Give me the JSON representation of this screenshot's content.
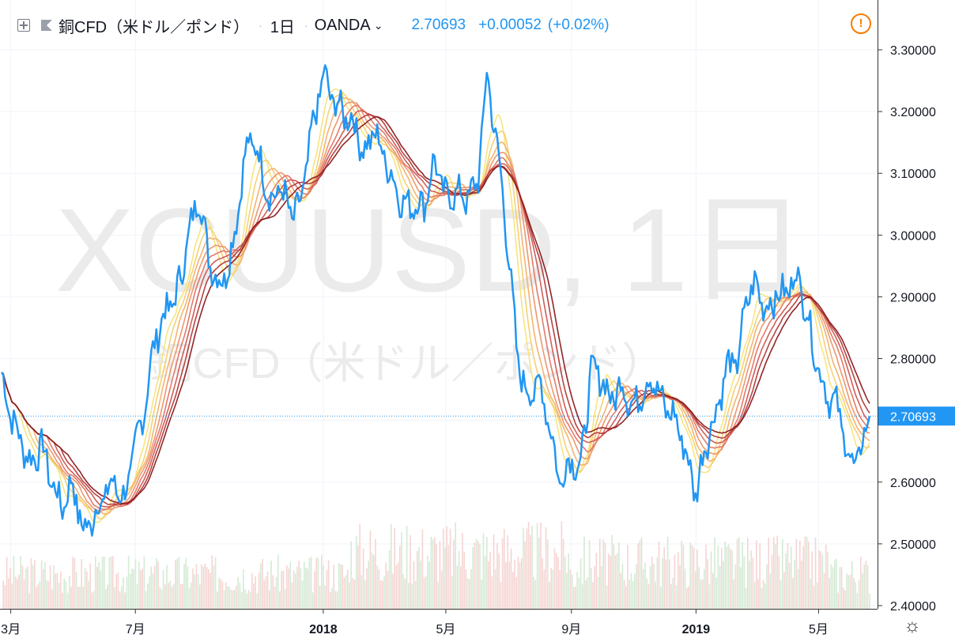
{
  "header": {
    "symbol": "銅CFD（米ドル／ポンド）",
    "separator": "·",
    "interval": "1日",
    "broker": "OANDA",
    "broker_chevron": "⌄",
    "price": "2.70693",
    "change": "+0.00052",
    "change_pct": "(+0.02%)"
  },
  "watermark": {
    "line1": "XCUUSD, 1日",
    "line2": "銅CFD（米ドル／ポンド）"
  },
  "warning_icon": "!",
  "settings_icon": "☼",
  "price_tag": "2.70693",
  "colors": {
    "price_line": "#2196f3",
    "ribbon_fast": "#f5e47a",
    "ribbon_slow": "#8b1a1a",
    "volume_up": "#d5ead5",
    "volume_down": "#f5d5d3",
    "accent": "#2196f3"
  },
  "chart_data": {
    "type": "line",
    "title": "銅CFD（米ドル／ポンド）",
    "x_labels": [
      "3月",
      "7月",
      "2018",
      "5月",
      "9月",
      "2019",
      "5月"
    ],
    "y_ticks": [
      "3.30000",
      "3.20000",
      "3.10000",
      "3.00000",
      "2.90000",
      "2.80000",
      "2.70000",
      "2.60000",
      "2.50000",
      "2.40000"
    ],
    "ylim": [
      2.4,
      3.3
    ],
    "last_price": 2.70693,
    "series": [
      {
        "name": "price",
        "color": "#2196f3",
        "points": [
          [
            "2017-02-20",
            2.77
          ],
          [
            "2017-03-01",
            2.71
          ],
          [
            "2017-03-10",
            2.67
          ],
          [
            "2017-03-20",
            2.63
          ],
          [
            "2017-04-01",
            2.66
          ],
          [
            "2017-04-10",
            2.6
          ],
          [
            "2017-04-20",
            2.56
          ],
          [
            "2017-05-01",
            2.6
          ],
          [
            "2017-05-10",
            2.52
          ],
          [
            "2017-05-20",
            2.54
          ],
          [
            "2017-06-01",
            2.58
          ],
          [
            "2017-06-10",
            2.6
          ],
          [
            "2017-06-20",
            2.57
          ],
          [
            "2017-07-01",
            2.66
          ],
          [
            "2017-07-10",
            2.72
          ],
          [
            "2017-07-20",
            2.83
          ],
          [
            "2017-08-01",
            2.88
          ],
          [
            "2017-08-10",
            2.9
          ],
          [
            "2017-08-20",
            2.98
          ],
          [
            "2017-09-01",
            3.07
          ],
          [
            "2017-09-10",
            2.97
          ],
          [
            "2017-09-20",
            2.92
          ],
          [
            "2017-10-01",
            2.95
          ],
          [
            "2017-10-10",
            3.05
          ],
          [
            "2017-10-20",
            3.16
          ],
          [
            "2017-11-01",
            3.12
          ],
          [
            "2017-11-10",
            3.05
          ],
          [
            "2017-11-20",
            3.08
          ],
          [
            "2017-12-01",
            3.03
          ],
          [
            "2017-12-10",
            3.05
          ],
          [
            "2017-12-20",
            3.16
          ],
          [
            "2018-01-01",
            3.26
          ],
          [
            "2018-01-10",
            3.22
          ],
          [
            "2018-01-20",
            3.2
          ],
          [
            "2018-02-01",
            3.18
          ],
          [
            "2018-02-10",
            3.13
          ],
          [
            "2018-02-20",
            3.17
          ],
          [
            "2018-03-01",
            3.13
          ],
          [
            "2018-03-10",
            3.09
          ],
          [
            "2018-03-20",
            3.05
          ],
          [
            "2018-04-01",
            3.05
          ],
          [
            "2018-04-10",
            3.05
          ],
          [
            "2018-04-20",
            3.12
          ],
          [
            "2018-05-01",
            3.06
          ],
          [
            "2018-05-10",
            3.07
          ],
          [
            "2018-05-20",
            3.06
          ],
          [
            "2018-06-01",
            3.08
          ],
          [
            "2018-06-10",
            3.26
          ],
          [
            "2018-06-20",
            3.15
          ],
          [
            "2018-07-01",
            2.98
          ],
          [
            "2018-07-10",
            2.8
          ],
          [
            "2018-07-20",
            2.74
          ],
          [
            "2018-08-01",
            2.76
          ],
          [
            "2018-08-10",
            2.7
          ],
          [
            "2018-08-20",
            2.6
          ],
          [
            "2018-09-01",
            2.64
          ],
          [
            "2018-09-10",
            2.62
          ],
          [
            "2018-09-20",
            2.78
          ],
          [
            "2018-10-01",
            2.77
          ],
          [
            "2018-10-10",
            2.73
          ],
          [
            "2018-10-20",
            2.76
          ],
          [
            "2018-11-01",
            2.72
          ],
          [
            "2018-11-10",
            2.75
          ],
          [
            "2018-11-20",
            2.77
          ],
          [
            "2018-12-01",
            2.72
          ],
          [
            "2018-12-10",
            2.71
          ],
          [
            "2018-12-20",
            2.66
          ],
          [
            "2019-01-01",
            2.58
          ],
          [
            "2019-01-10",
            2.66
          ],
          [
            "2019-01-20",
            2.71
          ],
          [
            "2019-02-01",
            2.79
          ],
          [
            "2019-02-10",
            2.79
          ],
          [
            "2019-02-20",
            2.9
          ],
          [
            "2019-03-01",
            2.92
          ],
          [
            "2019-03-10",
            2.88
          ],
          [
            "2019-03-20",
            2.9
          ],
          [
            "2019-04-01",
            2.91
          ],
          [
            "2019-04-10",
            2.94
          ],
          [
            "2019-04-20",
            2.87
          ],
          [
            "2019-05-01",
            2.78
          ],
          [
            "2019-05-10",
            2.74
          ],
          [
            "2019-05-20",
            2.72
          ],
          [
            "2019-06-01",
            2.63
          ],
          [
            "2019-06-10",
            2.64
          ],
          [
            "2019-06-20",
            2.70693
          ]
        ]
      }
    ],
    "ribbon": {
      "description": "moving-average ribbon",
      "count": 8
    },
    "grid": true
  }
}
